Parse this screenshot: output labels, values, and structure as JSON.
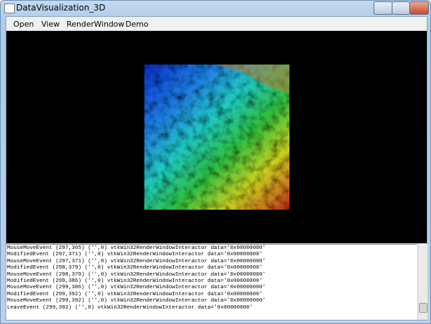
{
  "window": {
    "title": "DataVisualization_3D"
  },
  "menu": [
    "Open",
    "View",
    "RenderWindow",
    "Demo"
  ],
  "log": [
    "MouseMoveEvent (297,365) ('',0) vtkWin32RenderWindowInteractor data='0x00000000'",
    "ModifiedEvent (297,371) ('',0) vtkWin32RenderWindowInteractor data='0x00000000'",
    "MouseMoveEvent (297,371) ('',0) vtkWin32RenderWindowInteractor data='0x00000000'",
    "ModifiedEvent (298,379) ('',0) vtkWin32RenderWindowInteractor data='0x00000000'",
    "MouseMoveEvent (298,379) ('',0) vtkWin32RenderWindowInteractor data='0x00000000'",
    "ModifiedEvent (299,386) ('',0) vtkWin32RenderWindowInteractor data='0x00000000'",
    "MouseMoveEvent (299,386) ('',0) vtkWin32RenderWindowInteractor data='0x00000000'",
    "ModifiedEvent (299,392) ('',0) vtkWin32RenderWindowInteractor data='0x00000000'",
    "MouseMoveEvent (299,392) ('',0) vtkWin32RenderWindowInteractor data='0x00000000'",
    "LeaveEvent (299,392) ('',0) vtkWin32RenderWindowInteractor data='0x00000000'"
  ]
}
